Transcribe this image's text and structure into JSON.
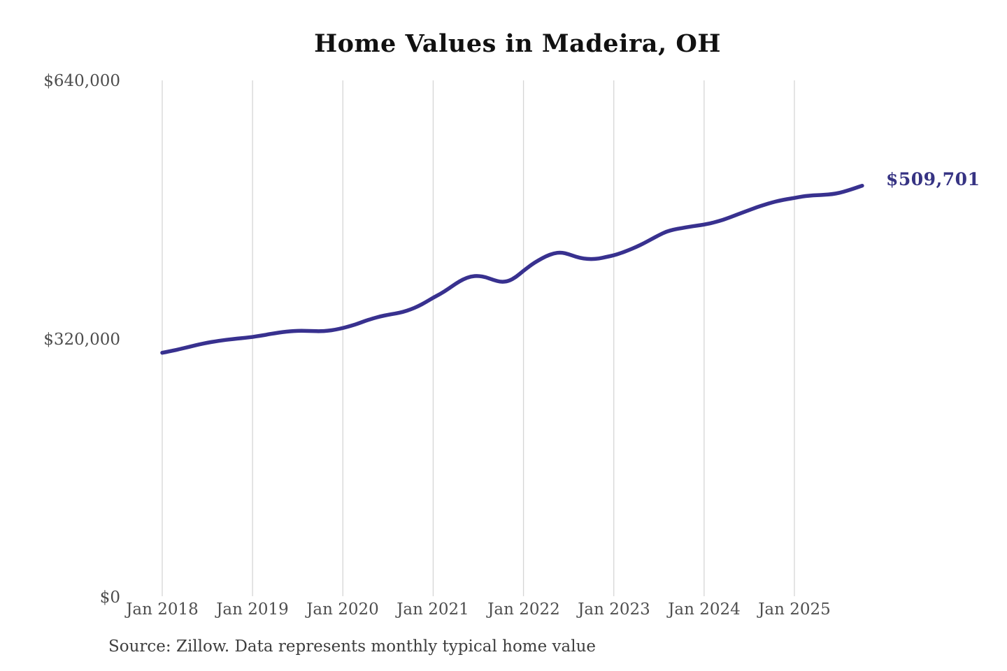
{
  "chart": {
    "title": "Home Values in Madeira, OH"
  },
  "footer": {
    "source": "Source: Zillow. Data represents monthly typical home value"
  },
  "chart_data": {
    "type": "line",
    "title": "Home Values in Madeira, OH",
    "series_name": "Monthly typical home value",
    "x_start": "Jan 2018",
    "x_end": "Oct 2025",
    "x_frequency": "monthly",
    "x_ticks": [
      "Jan 2018",
      "Jan 2019",
      "Jan 2020",
      "Jan 2021",
      "Jan 2022",
      "Jan 2023",
      "Jan 2024",
      "Jan 2025"
    ],
    "y_ticks": [
      {
        "label": "$0",
        "value": 0
      },
      {
        "label": "$320,000",
        "value": 320000
      },
      {
        "label": "$640,000",
        "value": 640000
      }
    ],
    "ylim": [
      0,
      640000
    ],
    "grid": "vertical-only",
    "legend": "none",
    "end_label": "$509,701",
    "end_value": 509701,
    "line_color": "#38318f",
    "gridline_color": "#d5d5d5",
    "values": [
      303000,
      304800,
      306800,
      309000,
      311300,
      313500,
      315400,
      317000,
      318400,
      319500,
      320500,
      321400,
      322500,
      324000,
      325600,
      327200,
      328600,
      329600,
      330100,
      330100,
      329800,
      329600,
      330200,
      331500,
      333500,
      336000,
      339000,
      342500,
      345500,
      348000,
      350000,
      351500,
      353500,
      356500,
      360500,
      365500,
      371000,
      376000,
      382000,
      388500,
      394000,
      397500,
      398200,
      396500,
      393000,
      390500,
      391500,
      396500,
      404500,
      411500,
      417500,
      422500,
      426000,
      427200,
      425000,
      421500,
      419500,
      418800,
      419500,
      421500,
      423500,
      426500,
      430000,
      434000,
      438500,
      443500,
      448500,
      453000,
      455500,
      457200,
      458800,
      460200,
      461500,
      463500,
      466000,
      469000,
      472500,
      476000,
      479500,
      483000,
      486000,
      488800,
      491200,
      493000,
      494500,
      496300,
      497400,
      498000,
      498400,
      499200,
      500800,
      503500,
      506500,
      509701
    ]
  }
}
